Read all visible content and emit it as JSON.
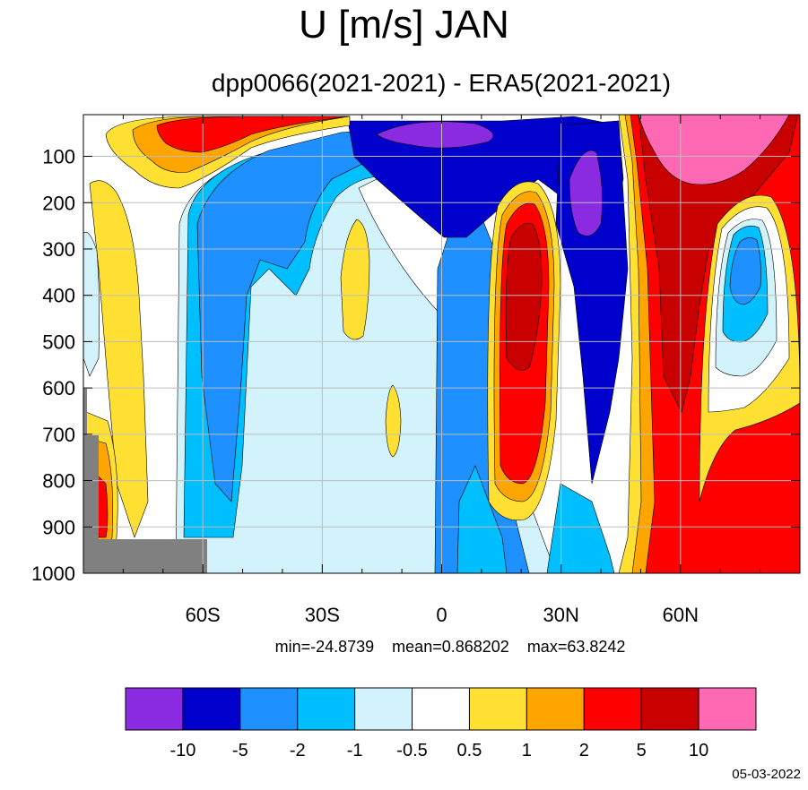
{
  "title": "U [m/s] JAN",
  "subtitle": "dpp0066(2021-2021) - ERA5(2021-2021)",
  "stats": {
    "min_text": "min=-24.8739",
    "mean_text": "mean=0.868202",
    "max_text": "max=63.8242"
  },
  "date": "05-03-2022",
  "chart_data": {
    "type": "heatmap",
    "title": "U [m/s] JAN",
    "subtitle": "dpp0066(2021-2021) - ERA5(2021-2021)",
    "xlabel": "",
    "ylabel": "",
    "xlim": [
      -90,
      90
    ],
    "ylim": [
      1000,
      10
    ],
    "x_ticks": [
      {
        "value": -60,
        "label": "60S"
      },
      {
        "value": -30,
        "label": "30S"
      },
      {
        "value": 0,
        "label": "0"
      },
      {
        "value": 30,
        "label": "30N"
      },
      {
        "value": 60,
        "label": "60N"
      }
    ],
    "y_ticks": [
      {
        "value": 100,
        "label": "100"
      },
      {
        "value": 200,
        "label": "200"
      },
      {
        "value": 300,
        "label": "300"
      },
      {
        "value": 400,
        "label": "400"
      },
      {
        "value": 500,
        "label": "500"
      },
      {
        "value": 600,
        "label": "600"
      },
      {
        "value": 700,
        "label": "700"
      },
      {
        "value": 800,
        "label": "800"
      },
      {
        "value": 900,
        "label": "900"
      },
      {
        "value": 1000,
        "label": "1000"
      }
    ],
    "grid": true,
    "levels": [
      -10,
      -5,
      -2,
      -1,
      -0.5,
      0.5,
      1,
      2,
      5,
      10
    ],
    "level_labels": [
      "-10",
      "-5",
      "-2",
      "-1",
      "-0.5",
      "0.5",
      "1",
      "2",
      "5",
      "10"
    ],
    "colors": [
      "#8a2be2",
      "#0000cd",
      "#1e90ff",
      "#00bfff",
      "#d2f3fb",
      "#ffffff",
      "#ffe033",
      "#ffa500",
      "#ff0000",
      "#c80000",
      "#ff69b4"
    ],
    "missing_color": "#808080",
    "min": -24.8739,
    "mean": 0.868202,
    "max": 63.8242
  }
}
